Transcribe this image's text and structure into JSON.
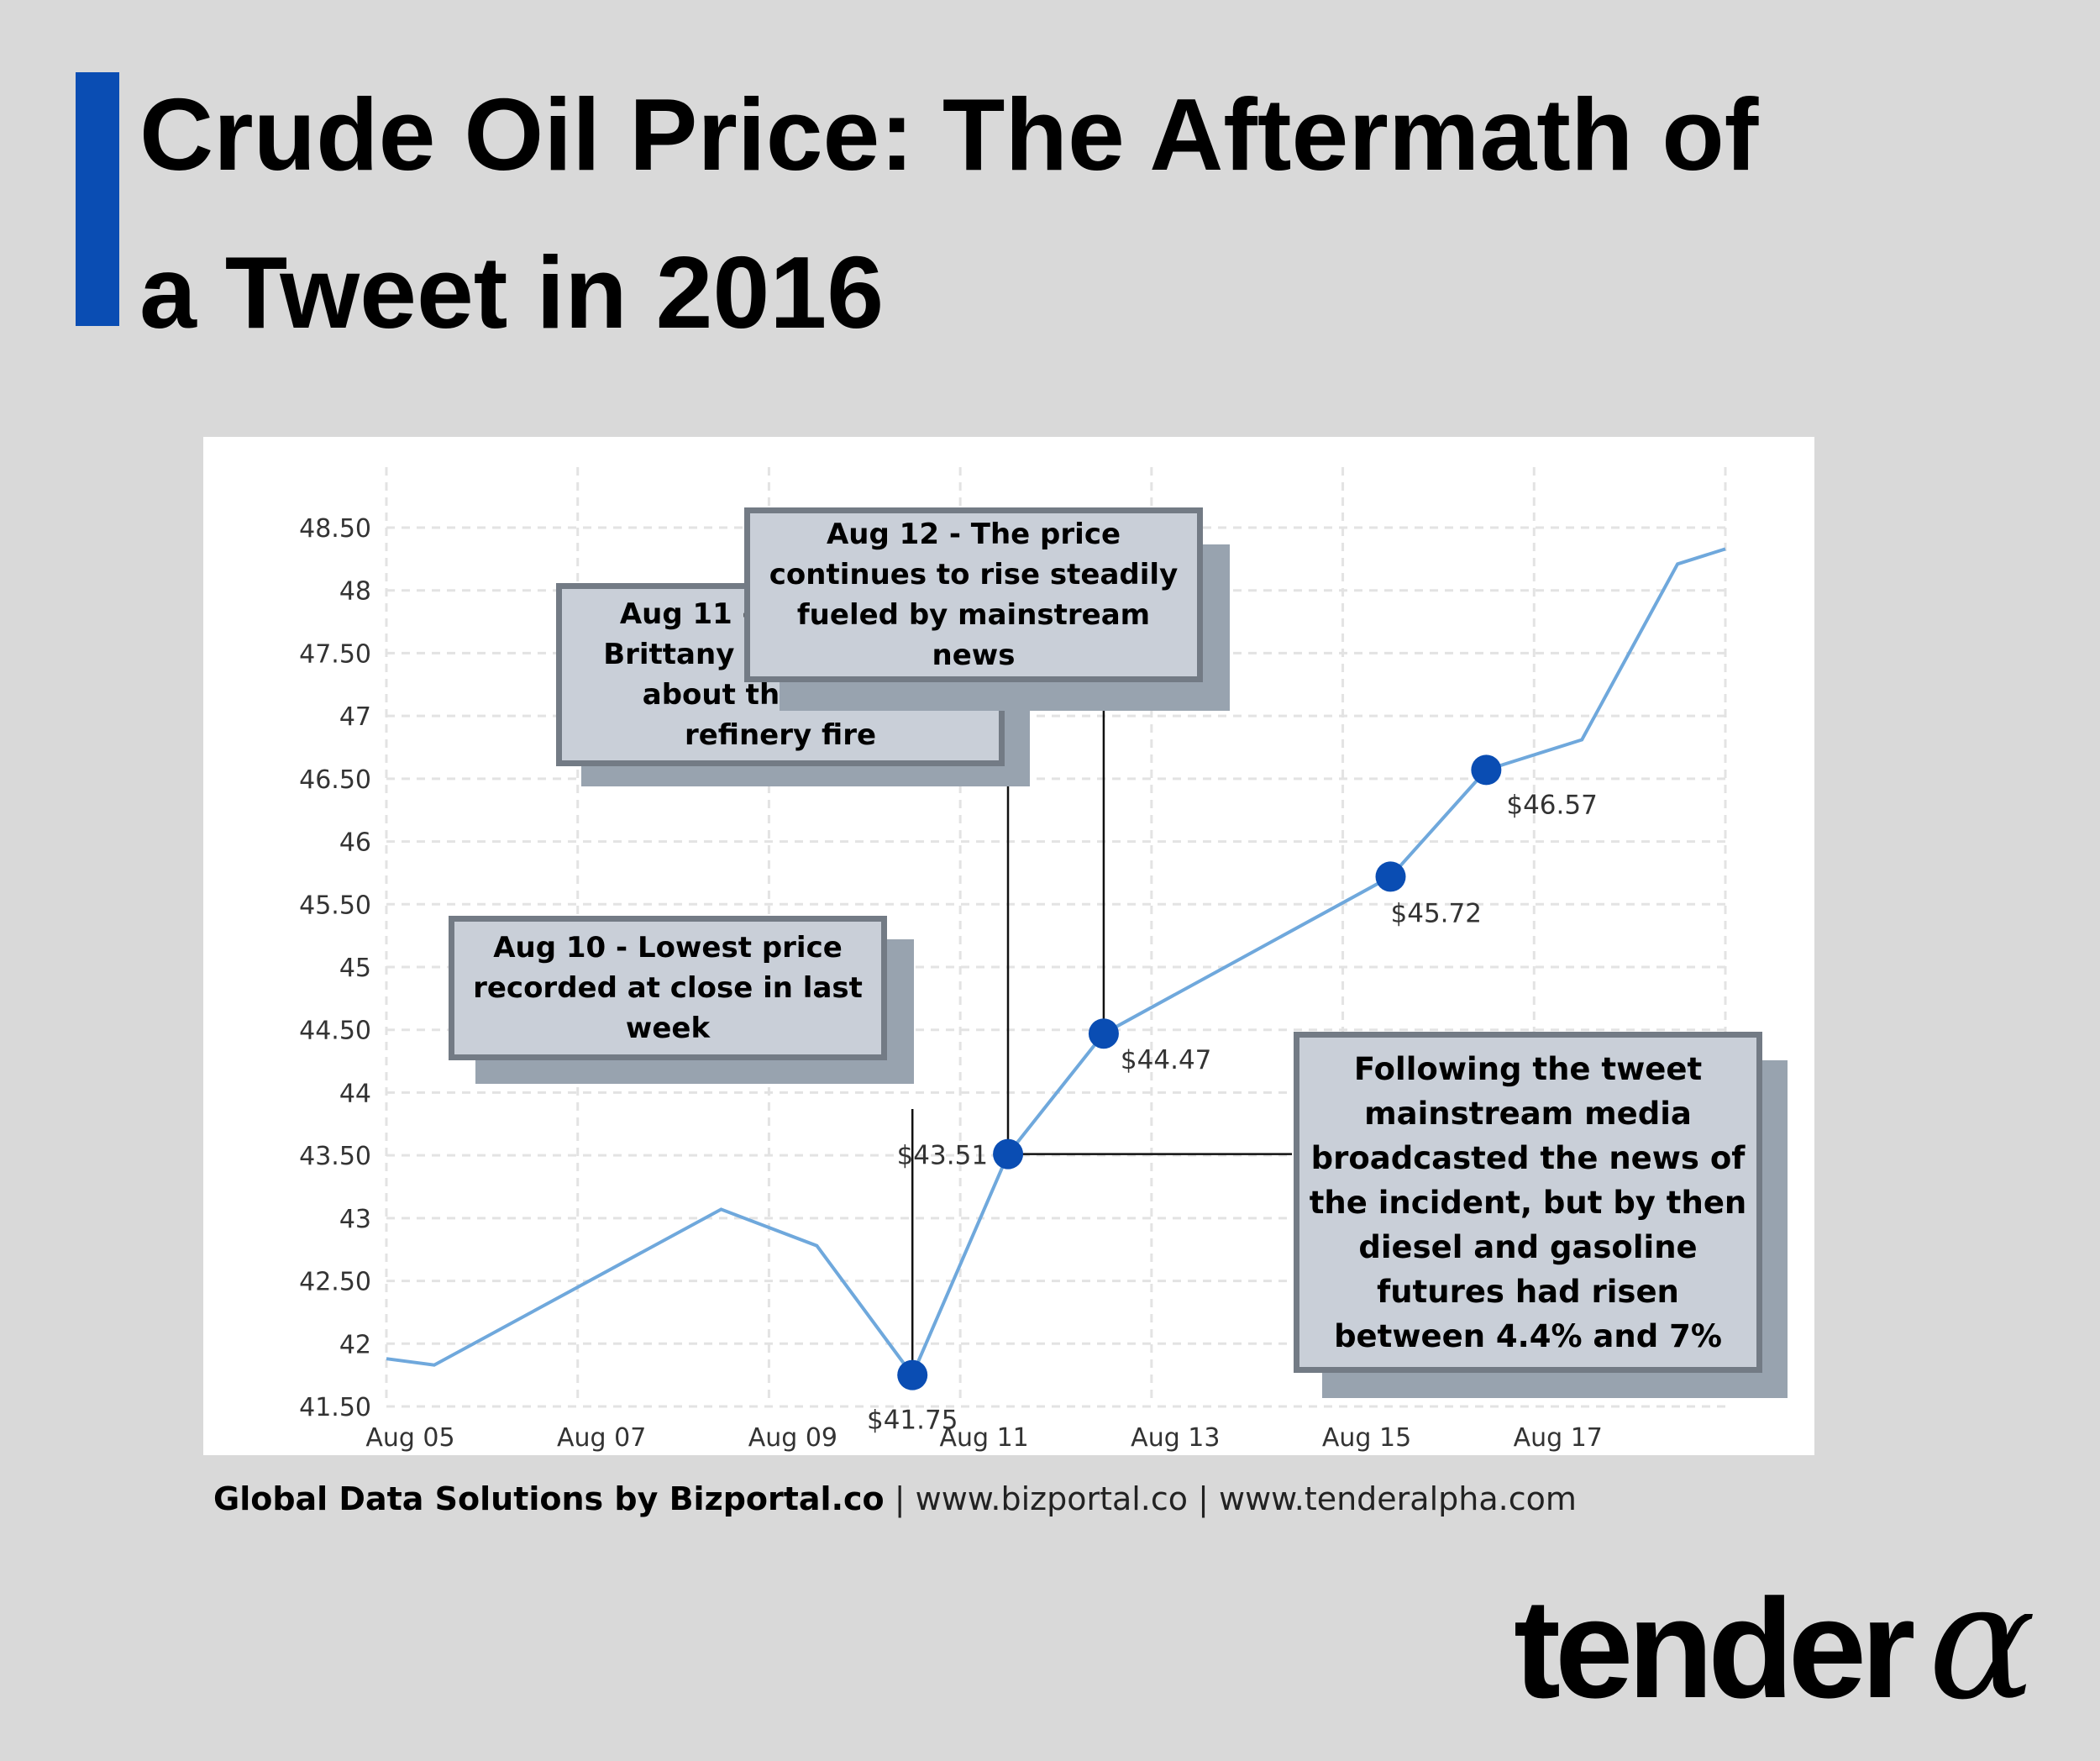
{
  "header": {
    "title_line1": "Crude Oil Price: The Aftermath of",
    "title_line2": "a Tweet in 2016",
    "accent_color": "#0a4db3"
  },
  "chart_data": {
    "type": "line",
    "title": "",
    "xlabel": "",
    "ylabel": "",
    "x_tick_labels": [
      "Aug 05",
      "Aug 07",
      "Aug 09",
      "Aug 11",
      "Aug 13",
      "Aug 15",
      "Aug 17"
    ],
    "y_tick_labels": [
      "41.50",
      "42",
      "42.50",
      "43",
      "43.50",
      "44",
      "44.50",
      "45",
      "45.50",
      "46",
      "46.50",
      "47",
      "47.50",
      "48",
      "48.50"
    ],
    "ylim": [
      41.5,
      48.5
    ],
    "xlim": [
      "2016-08-04",
      "2016-08-18"
    ],
    "grid": true,
    "line_color": "#6fa8dc",
    "marker_color": "#0a4db3",
    "series": [
      {
        "x": [
          "2016-08-04",
          "2016-08-04T12:00",
          "2016-08-07T12:00",
          "2016-08-08T12:00",
          "2016-08-09T12:00",
          "2016-08-10T12:00",
          "2016-08-11T12:00",
          "2016-08-14T12:00",
          "2016-08-15T12:00",
          "2016-08-16T12:00",
          "2016-08-17T12:00",
          "2016-08-18"
        ],
        "y": [
          41.88,
          41.83,
          43.07,
          42.78,
          41.75,
          43.51,
          44.47,
          45.72,
          46.57,
          46.81,
          48.21,
          48.33
        ]
      }
    ],
    "markers": [
      {
        "x": "2016-08-09T12:00",
        "y": 41.75,
        "label": "$41.75"
      },
      {
        "x": "2016-08-10T12:00",
        "y": 43.51,
        "label": "$43.51"
      },
      {
        "x": "2016-08-11T12:00",
        "y": 44.47,
        "label": "$44.47"
      },
      {
        "x": "2016-08-14T12:00",
        "y": 45.72,
        "label": "$45.72"
      },
      {
        "x": "2016-08-15T12:00",
        "y": 46.57,
        "label": "$46.57"
      }
    ],
    "annotations": [
      {
        "text": "Aug 10 - Lowest price recorded at close in last week"
      },
      {
        "text": "Aug 11 - At 7:08 pm Brittany Weiss tweets about the Motiva refinery fire"
      },
      {
        "text": "Aug 12 - The price continues to rise steadily fueled by mainstream news"
      },
      {
        "text": "Following the tweet mainstream media broadcasted the news of the incident, but by then diesel and gasoline futures had risen between 4.4% and 7%"
      }
    ]
  },
  "footer": {
    "brand": "Global Data Solutions by Bizportal.co",
    "rest": " | www.bizportal.co | www.tenderalpha.com"
  },
  "logo": {
    "word": "tender",
    "symbol": "α"
  }
}
